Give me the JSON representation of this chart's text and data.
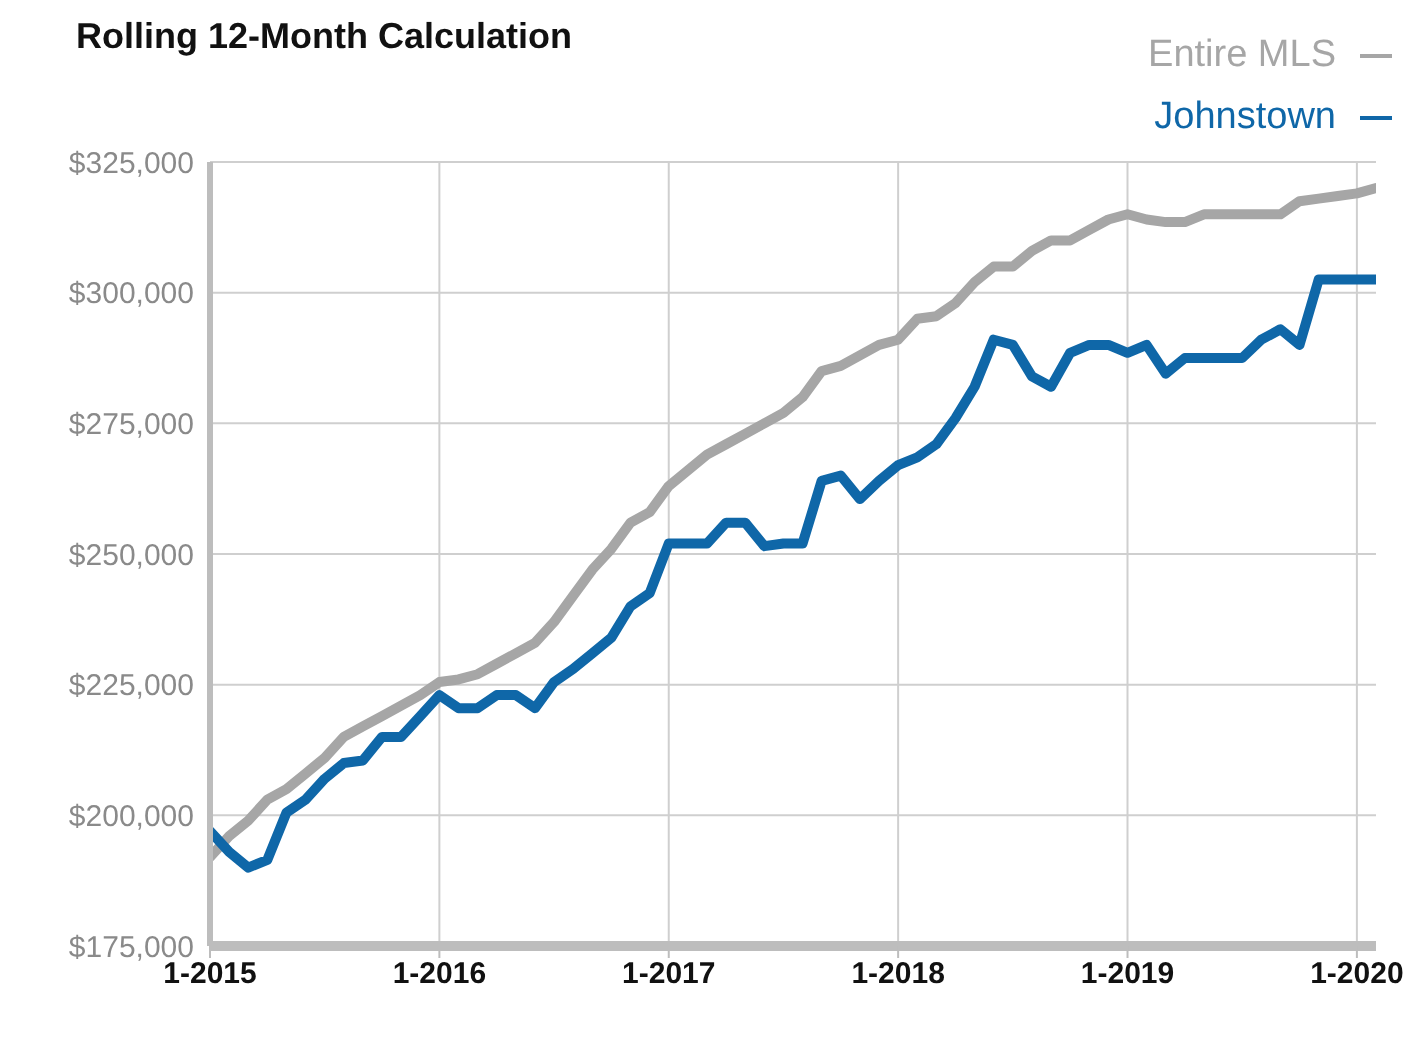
{
  "chart_data": {
    "type": "line",
    "title": "Rolling 12-Month Calculation",
    "x": [
      "2015-01",
      "2015-02",
      "2015-03",
      "2015-04",
      "2015-05",
      "2015-06",
      "2015-07",
      "2015-08",
      "2015-09",
      "2015-10",
      "2015-11",
      "2015-12",
      "2016-01",
      "2016-02",
      "2016-03",
      "2016-04",
      "2016-05",
      "2016-06",
      "2016-07",
      "2016-08",
      "2016-09",
      "2016-10",
      "2016-11",
      "2016-12",
      "2017-01",
      "2017-02",
      "2017-03",
      "2017-04",
      "2017-05",
      "2017-06",
      "2017-07",
      "2017-08",
      "2017-09",
      "2017-10",
      "2017-11",
      "2017-12",
      "2018-01",
      "2018-02",
      "2018-03",
      "2018-04",
      "2018-05",
      "2018-06",
      "2018-07",
      "2018-08",
      "2018-09",
      "2018-10",
      "2018-11",
      "2018-12",
      "2019-01",
      "2019-02",
      "2019-03",
      "2019-04",
      "2019-05",
      "2019-06",
      "2019-07",
      "2019-08",
      "2019-09",
      "2019-10",
      "2019-11",
      "2019-12",
      "2020-01",
      "2020-02"
    ],
    "series": [
      {
        "name": "Entire MLS",
        "color": "#a6a6a6",
        "values": [
          192000,
          196000,
          199000,
          203000,
          205000,
          208000,
          211000,
          215000,
          217000,
          219000,
          221000,
          223000,
          225500,
          226000,
          227000,
          229000,
          231000,
          233000,
          237000,
          242000,
          247000,
          251000,
          256000,
          258000,
          263000,
          266000,
          269000,
          271000,
          273000,
          275000,
          277000,
          280000,
          285000,
          286000,
          288000,
          290000,
          291000,
          295000,
          295500,
          298000,
          302000,
          305000,
          305000,
          308000,
          310000,
          310000,
          312000,
          314000,
          315000,
          314000,
          313500,
          313500,
          315000,
          315000,
          315000,
          315000,
          315000,
          317500,
          318000,
          318500,
          319000,
          320000
        ]
      },
      {
        "name": "Johnstown",
        "color": "#0f67a8",
        "values": [
          197000,
          193000,
          190000,
          191500,
          200500,
          203000,
          207000,
          210000,
          210500,
          215000,
          215000,
          219000,
          223000,
          220500,
          220500,
          223000,
          223000,
          220500,
          225500,
          228000,
          231000,
          234000,
          240000,
          242500,
          252000,
          252000,
          252000,
          256000,
          256000,
          251500,
          252000,
          252000,
          264000,
          265000,
          260500,
          264000,
          267000,
          268500,
          271000,
          276000,
          282000,
          291000,
          290000,
          284000,
          282000,
          288500,
          290000,
          290000,
          288500,
          290000,
          284500,
          287500,
          287500,
          287500,
          287500,
          291000,
          293000,
          290000,
          302500,
          302500,
          302500,
          302500
        ]
      }
    ],
    "xlim": [
      "2015-01",
      "2020-02"
    ],
    "xticks": [
      {
        "value": "2015-01",
        "label": "1-2015"
      },
      {
        "value": "2016-01",
        "label": "1-2016"
      },
      {
        "value": "2017-01",
        "label": "1-2017"
      },
      {
        "value": "2018-01",
        "label": "1-2018"
      },
      {
        "value": "2019-01",
        "label": "1-2019"
      },
      {
        "value": "2020-01",
        "label": "1-2020"
      }
    ],
    "ylim": [
      175000,
      325000
    ],
    "yticks": [
      {
        "value": 175000,
        "label": "$175,000"
      },
      {
        "value": 200000,
        "label": "$200,000"
      },
      {
        "value": 225000,
        "label": "$225,000"
      },
      {
        "value": 250000,
        "label": "$250,000"
      },
      {
        "value": 275000,
        "label": "$275,000"
      },
      {
        "value": 300000,
        "label": "$300,000"
      },
      {
        "value": 325000,
        "label": "$325,000"
      }
    ],
    "grid": true,
    "legend": "top right",
    "marker": "none",
    "line_style": "solid"
  }
}
